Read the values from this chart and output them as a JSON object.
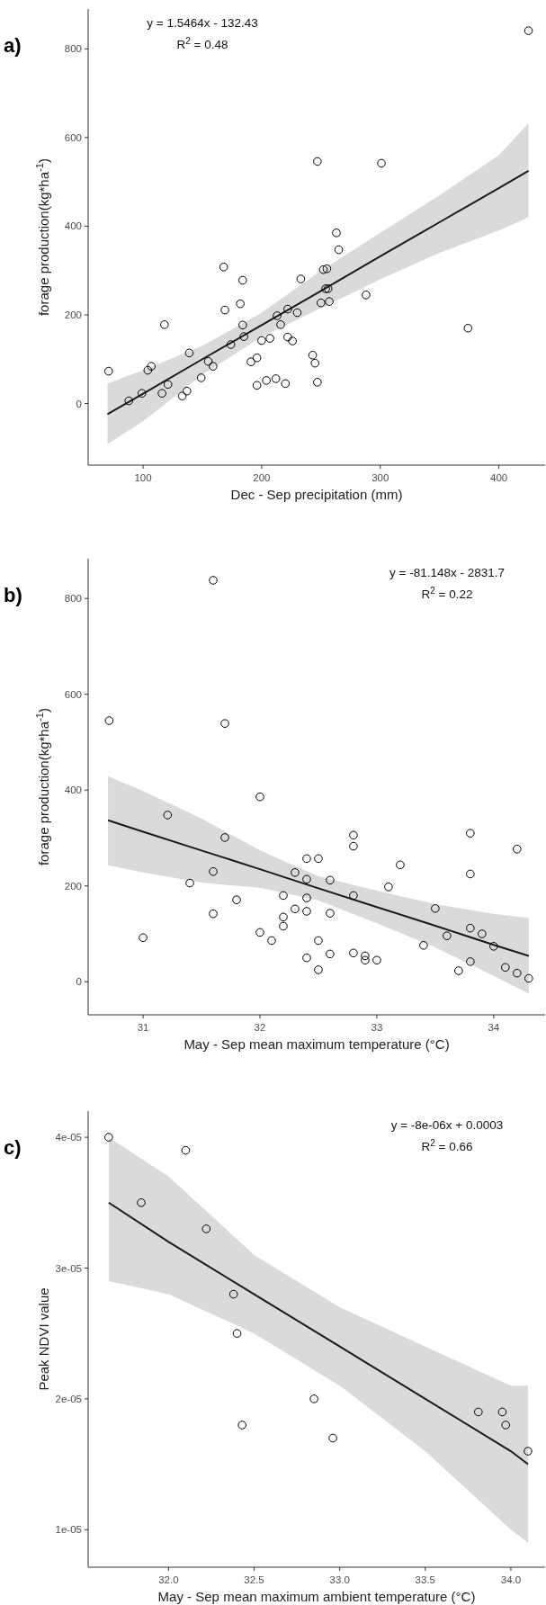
{
  "chart_data": [
    {
      "type": "scatter",
      "title": "a)",
      "xlabel": "Dec - Sep precipitation (mm)",
      "ylabel": "forage production(kg*ha$^{-1}$)",
      "annotations": [
        "y = 1.5464x - 132.43",
        "R$^{2}$ = 0.48"
      ],
      "xlim": [
        53.7,
        439
      ],
      "xticks": [
        100,
        200,
        300,
        400
      ],
      "ylim": [
        -139,
        890
      ],
      "yticks": [
        0,
        200,
        400,
        600,
        800
      ],
      "grid": false,
      "series": [
        {
          "marker": "circle",
          "color": "#000000",
          "x": [
            71,
            88,
            99,
            104,
            107,
            116,
            121,
            118,
            133,
            137,
            139,
            149,
            155,
            159,
            169,
            174,
            182,
            184,
            185,
            191,
            196,
            196,
            200,
            204,
            207,
            213,
            216,
            212,
            220,
            222,
            222,
            226,
            230,
            243,
            245,
            247,
            250,
            257,
            374,
            425,
            247,
            301,
            263,
            265,
            168,
            184,
            233,
            252,
            255,
            254,
            256,
            288
          ],
          "values": [
            73,
            6,
            23,
            75,
            84,
            23,
            43,
            178,
            17,
            28,
            114,
            58,
            95,
            84,
            211,
            133,
            225,
            177,
            151,
            94,
            103,
            41,
            142,
            52,
            147,
            198,
            178,
            56,
            45,
            213,
            150,
            141,
            205,
            109,
            91,
            48,
            227,
            230,
            170,
            841,
            546,
            542,
            385,
            347,
            308,
            278,
            281,
            302,
            304,
            259,
            259,
            245
          ]
        },
        {
          "type": "line",
          "color": "#1a1a1a",
          "x": [
            70,
            100,
            150,
            200,
            250,
            300,
            350,
            400,
            425
          ],
          "values": [
            -24,
            22,
            100,
            177,
            254,
            332,
            409,
            486,
            525
          ],
          "lower": [
            -92,
            -40,
            65,
            150,
            215,
            280,
            340,
            390,
            420
          ],
          "upper": [
            45,
            75,
            130,
            205,
            300,
            385,
            470,
            560,
            632
          ]
        }
      ]
    },
    {
      "type": "scatter",
      "title": "b)",
      "xlabel": "May - Sep mean maximum temperature (°C)",
      "ylabel": "forage production(kg*ha$^{-1}$)",
      "annotations": [
        "y = -81.148x - 2831.7",
        "R$^{2}$ = 0.22"
      ],
      "xlim": [
        30.53,
        34.44
      ],
      "xticks": [
        31,
        32,
        33,
        34
      ],
      "ylim": [
        -69,
        883
      ],
      "yticks": [
        0,
        200,
        400,
        600,
        800
      ],
      "grid": false,
      "series": [
        {
          "marker": "circle",
          "color": "#000000",
          "x": [
            30.71,
            31.7,
            32.0,
            31.21,
            31.7,
            31.6,
            31.4,
            31.8,
            31.6,
            32.3,
            32.4,
            32.5,
            32.4,
            32.6,
            32.2,
            32.4,
            32.3,
            32.4,
            32.6,
            32.2,
            32.2,
            32.8,
            32.8,
            32.8,
            33.2,
            33.1,
            33.5,
            33.8,
            33.8,
            34.2,
            31.6,
            31.0,
            32.0,
            32.1,
            32.5,
            32.4,
            32.5,
            32.6,
            32.8,
            32.9,
            32.9,
            33.0,
            33.4,
            33.6,
            33.8,
            33.9,
            34.0,
            33.7,
            33.8,
            34.1,
            34.2,
            34.3
          ],
          "values": [
            545,
            539,
            386,
            348,
            301,
            230,
            206,
            171,
            142,
            228,
            257,
            257,
            214,
            212,
            180,
            175,
            152,
            147,
            143,
            135,
            116,
            306,
            283,
            180,
            244,
            198,
            153,
            310,
            225,
            277,
            838,
            92,
            103,
            86,
            86,
            50,
            25,
            58,
            60,
            54,
            45,
            45,
            76,
            96,
            112,
            100,
            74,
            23,
            42,
            30,
            18,
            7
          ]
        },
        {
          "type": "line",
          "color": "#1a1a1a",
          "x": [
            30.7,
            31,
            31.5,
            32,
            32.5,
            33,
            33.5,
            34,
            34.3
          ],
          "values": [
            337,
            313,
            274,
            235,
            195,
            156,
            117,
            77,
            54
          ],
          "lower": [
            243,
            228,
            207,
            196,
            170,
            122,
            72,
            12,
            -25
          ],
          "upper": [
            429,
            398,
            341,
            274,
            220,
            190,
            162,
            142,
            133
          ]
        }
      ]
    },
    {
      "type": "scatter",
      "title": "c)",
      "xlabel": "May - Sep mean maximum ambient temperature (°C)",
      "ylabel": "Peak NDVI value",
      "annotations": [
        "y = -8e-06x + 0.0003",
        "R$^{2}$ = 0.66"
      ],
      "xlim": [
        31.53,
        34.2
      ],
      "xticks": [
        {
          "value": 32,
          "label": "32.0"
        },
        32.5,
        {
          "value": 33,
          "label": "33.0"
        },
        33.5,
        {
          "value": 34,
          "label": "34.0"
        }
      ],
      "ylim": [
        7.13e-06,
        4.2e-05
      ],
      "yticks": [
        {
          "value": 1e-05,
          "label": "1e-05"
        },
        {
          "value": 2e-05,
          "label": "2e-05"
        },
        {
          "value": 3e-05,
          "label": "3e-05"
        },
        {
          "value": 4e-05,
          "label": "4e-05"
        }
      ],
      "grid": false,
      "series": [
        {
          "marker": "circle",
          "color": "#000000",
          "x": [
            31.65,
            32.1,
            31.84,
            32.22,
            32.38,
            32.4,
            32.43,
            32.85,
            32.96,
            33.81,
            33.95,
            33.97,
            34.1
          ],
          "values": [
            4e-05,
            3.9e-05,
            3.5e-05,
            3.3e-05,
            2.8e-05,
            2.5e-05,
            1.8e-05,
            2e-05,
            1.7e-05,
            1.9e-05,
            1.9e-05,
            1.8e-05,
            1.6e-05
          ]
        },
        {
          "type": "line",
          "color": "#1a1a1a",
          "x": [
            31.65,
            32,
            32.5,
            33,
            33.5,
            34,
            34.1
          ],
          "values": [
            3.5e-05,
            3.2e-05,
            2.8e-05,
            2.4e-05,
            2e-05,
            1.6e-05,
            1.5e-05
          ],
          "lower": [
            2.9e-05,
            2.8e-05,
            2.5e-05,
            2.1e-05,
            1.6e-05,
            1e-05,
            9e-06
          ],
          "upper": [
            4e-05,
            3.7e-05,
            3.1e-05,
            2.7e-05,
            2.4e-05,
            2.1e-05,
            2.1e-05
          ]
        }
      ]
    }
  ]
}
